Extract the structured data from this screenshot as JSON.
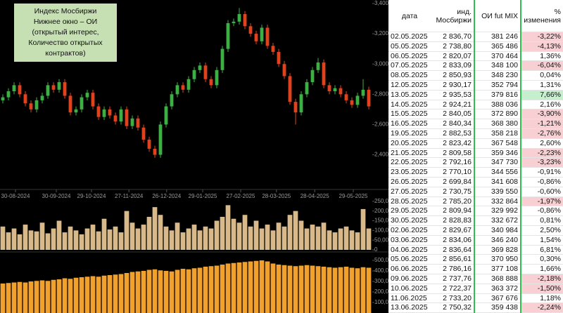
{
  "chart_data": [
    {
      "type": "candlestick",
      "annotation": [
        "Индекс Мосбиржи",
        "Нижнее окно – ОИ",
        "(открытый интерес,",
        "Количество открытых",
        "контрактов)"
      ],
      "up_color": "#3cb043",
      "down_color": "#e0421e",
      "open": [
        2760,
        2780,
        2820,
        2860,
        2800,
        2740,
        2700,
        2760,
        2790,
        2860,
        2830,
        2880,
        2790,
        2680,
        2700,
        2780,
        2810,
        2720,
        2650,
        2700,
        2660,
        2620,
        2700,
        2590,
        2640,
        2580,
        2500,
        2440,
        2400,
        2600,
        2720,
        2800,
        2860,
        2830,
        2900,
        2960,
        2990,
        2900,
        2860,
        2960,
        3100,
        3270,
        3280,
        3330,
        3250,
        3200,
        3150,
        3240,
        3120,
        3080,
        3000,
        2920,
        2750,
        2680,
        2800,
        2880,
        2960,
        3010,
        2860,
        2820,
        2840,
        2800,
        2760,
        2730,
        2790,
        2830
      ],
      "high": [
        2800,
        2840,
        2880,
        2880,
        2820,
        2760,
        2780,
        2810,
        2880,
        2880,
        2900,
        2900,
        2810,
        2720,
        2800,
        2830,
        2830,
        2740,
        2720,
        2720,
        2680,
        2720,
        2720,
        2660,
        2660,
        2600,
        2520,
        2460,
        2620,
        2740,
        2820,
        2880,
        2880,
        2920,
        2980,
        3010,
        3010,
        2920,
        2980,
        3120,
        3290,
        3300,
        3370,
        3350,
        3270,
        3220,
        3260,
        3260,
        3140,
        3100,
        3020,
        2940,
        2770,
        2820,
        2900,
        2980,
        3040,
        3030,
        2880,
        2860,
        2860,
        2820,
        2780,
        2810,
        2900,
        2850
      ],
      "low": [
        2740,
        2760,
        2800,
        2780,
        2720,
        2680,
        2680,
        2740,
        2770,
        2810,
        2810,
        2770,
        2660,
        2660,
        2680,
        2760,
        2700,
        2630,
        2630,
        2640,
        2600,
        2600,
        2570,
        2570,
        2560,
        2480,
        2420,
        2380,
        2380,
        2580,
        2700,
        2780,
        2810,
        2810,
        2880,
        2940,
        2880,
        2840,
        2840,
        2940,
        3080,
        3250,
        3260,
        3230,
        3180,
        3130,
        3130,
        3100,
        3060,
        2980,
        2900,
        2730,
        2600,
        2660,
        2780,
        2860,
        2940,
        2840,
        2800,
        2800,
        2780,
        2740,
        2710,
        2710,
        2770,
        2700
      ],
      "close": [
        2780,
        2820,
        2860,
        2800,
        2740,
        2700,
        2760,
        2790,
        2860,
        2830,
        2880,
        2790,
        2680,
        2700,
        2780,
        2810,
        2720,
        2650,
        2700,
        2660,
        2620,
        2700,
        2590,
        2640,
        2580,
        2500,
        2440,
        2400,
        2600,
        2720,
        2800,
        2860,
        2830,
        2900,
        2960,
        2990,
        2900,
        2860,
        2960,
        3100,
        3270,
        3280,
        3330,
        3250,
        3200,
        3150,
        3240,
        3120,
        3080,
        3000,
        2920,
        2750,
        2680,
        2800,
        2880,
        2960,
        3010,
        2860,
        2820,
        2840,
        2800,
        2760,
        2730,
        2790,
        2830,
        2720
      ],
      "xlim": [
        -0.5,
        65.5
      ],
      "xticks": [
        {
          "value": 2.25,
          "label": "30-08-2024"
        },
        {
          "value": 9.5,
          "label": "30-09-2024"
        },
        {
          "value": 15.75,
          "label": "29-10-2024"
        },
        {
          "value": 22.4,
          "label": "27-11-2024"
        },
        {
          "value": 29.1,
          "label": "26-12-2024"
        },
        {
          "value": 35.5,
          "label": "29-01-2025"
        },
        {
          "value": 42.25,
          "label": "27-02-2025"
        },
        {
          "value": 48.6,
          "label": "28-03-2025"
        },
        {
          "value": 55.4,
          "label": "28-04-2025"
        },
        {
          "value": 62.25,
          "label": "29-05-2025"
        }
      ],
      "ylim": [
        2180,
        3423
      ],
      "yticks": [
        {
          "value": 2400,
          "label": "2,400"
        },
        {
          "value": 2600,
          "label": "2,600"
        },
        {
          "value": 2800,
          "label": "2,800"
        },
        {
          "value": 3000,
          "label": "3,000"
        },
        {
          "value": 3200,
          "label": "3,200"
        },
        {
          "value": 3400,
          "label": "3,400"
        }
      ]
    },
    {
      "type": "bar",
      "color": "#d8b98a",
      "values": [
        120000,
        90000,
        110000,
        80000,
        130000,
        100000,
        95000,
        140000,
        85000,
        110000,
        150000,
        90000,
        120000,
        100000,
        80000,
        110000,
        130000,
        95000,
        160000,
        105000,
        120000,
        90000,
        200000,
        140000,
        110000,
        130000,
        170000,
        220000,
        180000,
        120000,
        100000,
        140000,
        90000,
        110000,
        130000,
        100000,
        120000,
        110000,
        150000,
        170000,
        230000,
        160000,
        140000,
        180000,
        120000,
        150000,
        110000,
        130000,
        100000,
        140000,
        120000,
        180000,
        200000,
        150000,
        110000,
        130000,
        120000,
        140000,
        100000,
        90000,
        110000,
        120000,
        100000,
        90000,
        210000,
        110000
      ],
      "xlim": [
        -0.5,
        65.5
      ],
      "ylim": [
        0,
        300000
      ],
      "yticks": [
        0,
        {
          "value": 50000,
          "label": "50,000"
        },
        {
          "value": 100000,
          "label": "100,000"
        },
        {
          "value": 150000,
          "label": "150,000"
        },
        {
          "value": 200000,
          "label": "200,000"
        },
        {
          "value": 250000,
          "label": "250,000"
        }
      ]
    },
    {
      "type": "bar",
      "color": "#f2a22c",
      "values": [
        280000,
        285000,
        290000,
        295000,
        290000,
        300000,
        305000,
        310000,
        305000,
        315000,
        320000,
        330000,
        325000,
        335000,
        340000,
        345000,
        350000,
        345000,
        355000,
        360000,
        365000,
        370000,
        380000,
        390000,
        395000,
        400000,
        410000,
        415000,
        405000,
        400000,
        395000,
        410000,
        420000,
        415000,
        425000,
        430000,
        440000,
        445000,
        450000,
        460000,
        470000,
        475000,
        480000,
        485000,
        490000,
        495000,
        500000,
        490000,
        470000,
        460000,
        455000,
        450000,
        445000,
        450000,
        455000,
        450000,
        445000,
        440000,
        435000,
        430000,
        435000,
        440000,
        430000,
        425000,
        435000,
        430000
      ],
      "xlim": [
        -0.5,
        65.5
      ],
      "ylim": [
        0,
        560000
      ],
      "yticks": [
        {
          "value": 100000,
          "label": "100,000"
        },
        {
          "value": 200000,
          "label": "200,000"
        },
        {
          "value": 300000,
          "label": "300,000"
        },
        {
          "value": 400000,
          "label": "400,000"
        },
        {
          "value": 500000,
          "label": "500,000"
        }
      ]
    }
  ],
  "table": {
    "header": [
      "дата",
      "инд. Мосбиржи",
      "ОИ fut MIX",
      "% изменения"
    ],
    "rows": [
      [
        "02.05.2025",
        "2 836,70",
        "381 246",
        "-3,22%"
      ],
      [
        "05.05.2025",
        "2 738,80",
        "365 486",
        "-4,13%"
      ],
      [
        "06.05.2025",
        "2 820,07",
        "370 464",
        "1,36%"
      ],
      [
        "07.05.2025",
        "2 833,09",
        "348 100",
        "-6,04%"
      ],
      [
        "08.05.2025",
        "2 850,93",
        "348 230",
        "0,04%"
      ],
      [
        "12.05.2025",
        "2 930,17",
        "352 794",
        "1,31%"
      ],
      [
        "13.05.2025",
        "2 935,53",
        "379 816",
        "7,66%"
      ],
      [
        "14.05.2025",
        "2 924,21",
        "388 036",
        "2,16%"
      ],
      [
        "15.05.2025",
        "2 840,05",
        "372 890",
        "-3,90%"
      ],
      [
        "16.05.2025",
        "2 840,34",
        "368 380",
        "-1,21%"
      ],
      [
        "19.05.2025",
        "2 882,53",
        "358 218",
        "-2,76%"
      ],
      [
        "20.05.2025",
        "2 823,42",
        "367 548",
        "2,60%"
      ],
      [
        "21.05.2025",
        "2 809,58",
        "359 346",
        "-2,23%"
      ],
      [
        "22.05.2025",
        "2 792,16",
        "347 730",
        "-3,23%"
      ],
      [
        "23.05.2025",
        "2 770,10",
        "344 556",
        "-0,91%"
      ],
      [
        "26.05.2025",
        "2 699,84",
        "341 608",
        "-0,86%"
      ],
      [
        "27.05.2025",
        "2 730,75",
        "339 550",
        "-0,60%"
      ],
      [
        "28.05.2025",
        "2 785,20",
        "332 864",
        "-1,97%"
      ],
      [
        "29.05.2025",
        "2 809,94",
        "329 992",
        "-0,86%"
      ],
      [
        "30.05.2025",
        "2 828,83",
        "332 672",
        "0,81%"
      ],
      [
        "02.06.2025",
        "2 829,67",
        "340 984",
        "2,50%"
      ],
      [
        "03.06.2025",
        "2 834,06",
        "346 240",
        "1,54%"
      ],
      [
        "04.06.2025",
        "2 836,64",
        "369 828",
        "6,81%"
      ],
      [
        "05.06.2025",
        "2 856,61",
        "370 950",
        "0,30%"
      ],
      [
        "06.06.2025",
        "2 786,16",
        "377 108",
        "1,66%"
      ],
      [
        "09.06.2025",
        "2 737,76",
        "368 888",
        "-2,18%"
      ],
      [
        "10.06.2025",
        "2 722,37",
        "363 372",
        "-1,50%"
      ],
      [
        "11.06.2025",
        "2 733,20",
        "367 676",
        "1,18%"
      ],
      [
        "13.06.2025",
        "2 750,32",
        "359 438",
        "-2,24%"
      ]
    ],
    "change_colors": [
      "#f8cfd3",
      "#f8cfd3",
      "#ffffff",
      "#f8cfd3",
      "#ffffff",
      "#ffffff",
      "#c6efce",
      "#ffffff",
      "#f8cfd3",
      "#f8cfd3",
      "#f8cfd3",
      "#ffffff",
      "#f8cfd3",
      "#f8cfd3",
      "#ffffff",
      "#ffffff",
      "#ffffff",
      "#f8cfd3",
      "#ffffff",
      "#ffffff",
      "#ffffff",
      "#ffffff",
      "#ffffff",
      "#ffffff",
      "#ffffff",
      "#f8cfd3",
      "#f8cfd3",
      "#ffffff",
      "#f8cfd3"
    ]
  }
}
